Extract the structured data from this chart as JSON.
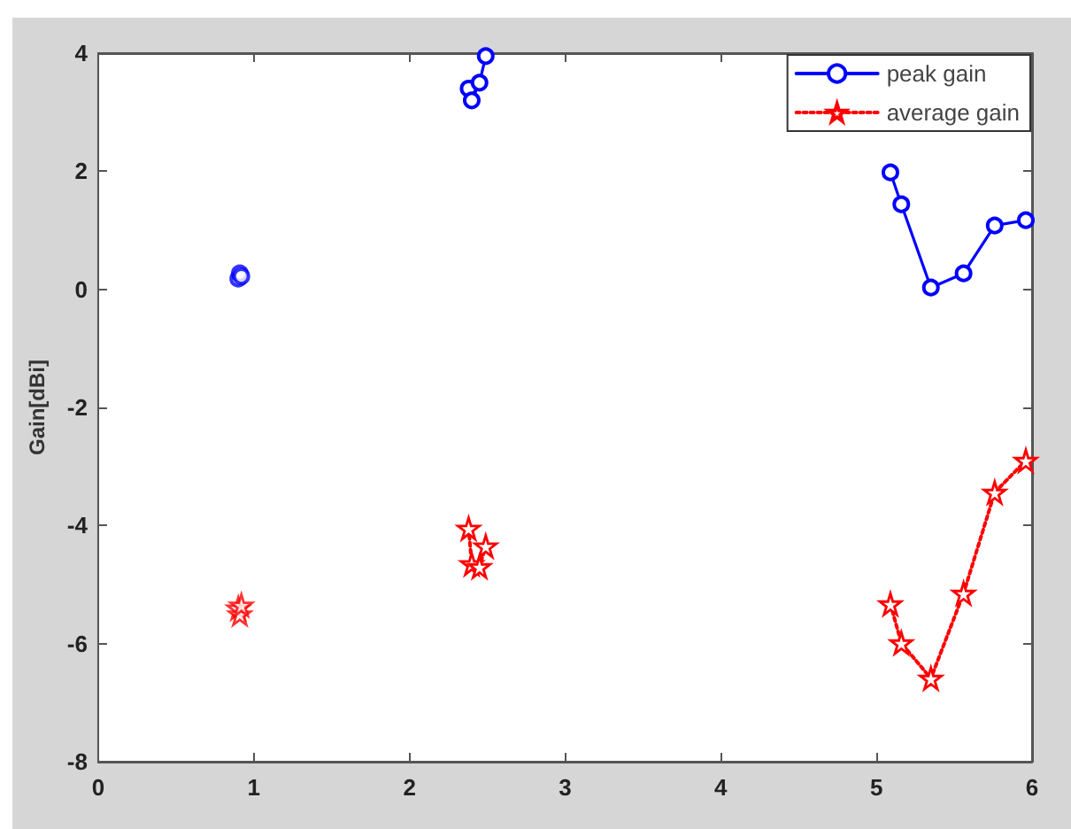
{
  "chart_data": {
    "type": "line",
    "ylabel": "Gain[dBi]",
    "xlim": [
      0,
      6
    ],
    "xticks": [
      0,
      1,
      2,
      3,
      4,
      5,
      6
    ],
    "ylim": [
      -8,
      4
    ],
    "yticks": [
      -8,
      -6,
      -4,
      -2,
      0,
      2,
      4
    ],
    "grid": false,
    "legend": "top right",
    "series": [
      {
        "name": "peak gain",
        "color": "#0000ff",
        "marker": "circle",
        "line_style": "solid",
        "x": [
          5.09,
          5.16,
          5.35,
          5.56,
          5.76,
          5.96
        ],
        "values": [
          1.98,
          1.44,
          0.03,
          0.27,
          1.08,
          1.17
        ]
      },
      {
        "name": "average gain",
        "color": "#ff0000",
        "marker": "star",
        "line_style": "dotted",
        "x": [
          5.09,
          5.16,
          5.35,
          5.56,
          5.76,
          5.96
        ],
        "values": [
          -5.33,
          -5.99,
          -6.59,
          -5.15,
          -3.44,
          -2.9
        ]
      },
      {
        "color": "#0000ff",
        "marker": "circle",
        "line_style": "solid",
        "x": [
          2.38,
          2.4,
          2.45,
          2.49
        ],
        "values": [
          3.4,
          3.2,
          3.5,
          3.95
        ]
      },
      {
        "color": "#ff0000",
        "marker": "star",
        "line_style": "dotted",
        "x": [
          2.38,
          2.4,
          2.45,
          2.49
        ],
        "values": [
          -4.05,
          -4.65,
          -4.7,
          -4.35
        ]
      },
      {
        "type": "scatter",
        "color": "#0000ff",
        "marker": "circle",
        "x": [
          0.9,
          0.91,
          0.92
        ],
        "values": [
          0.18,
          0.27,
          0.22
        ]
      },
      {
        "type": "scatter",
        "color": "#ff0000",
        "marker": "star",
        "x": [
          0.9,
          0.91,
          0.92
        ],
        "values": [
          -5.4,
          -5.5,
          -5.35
        ]
      }
    ]
  }
}
